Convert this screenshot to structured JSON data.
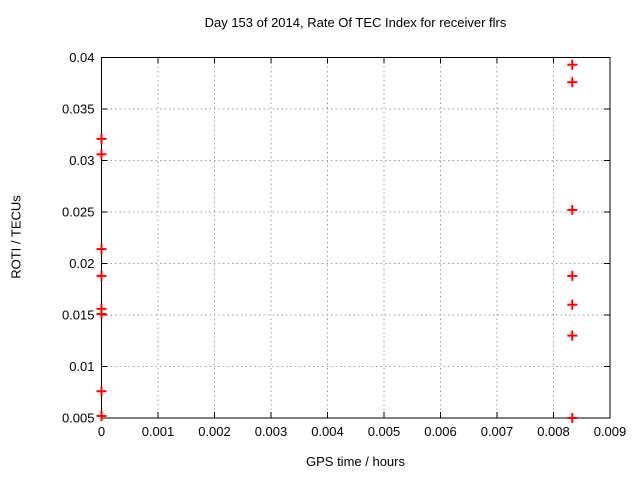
{
  "chart_data": {
    "type": "scatter",
    "title": "Day 153 of 2014, Rate Of TEC Index for receiver flrs",
    "xlabel": "GPS time / hours",
    "ylabel": "ROTI / TECUs",
    "xlim": [
      0,
      0.009
    ],
    "ylim": [
      0.005,
      0.04
    ],
    "grid": true,
    "legend_position": "none",
    "marker": "plus",
    "marker_color": "#ff0000",
    "xticks": {
      "values": [
        0,
        0.001,
        0.002,
        0.003,
        0.004,
        0.005,
        0.006,
        0.007,
        0.008,
        0.009
      ],
      "labels": [
        "0",
        "0.001",
        "0.002",
        "0.003",
        "0.004",
        "0.005",
        "0.006",
        "0.007",
        "0.008",
        "0.009"
      ]
    },
    "yticks": {
      "values": [
        0.005,
        0.01,
        0.015,
        0.02,
        0.025,
        0.03,
        0.035,
        0.04
      ],
      "labels": [
        "0.005",
        "0.01",
        "0.015",
        "0.02",
        "0.025",
        "0.03",
        "0.035",
        "0.04"
      ]
    },
    "series": [
      {
        "name": "ROTI",
        "color": "#ff0000",
        "points": [
          [
            0,
            0.0321
          ],
          [
            0,
            0.0306
          ],
          [
            0,
            0.0214
          ],
          [
            0,
            0.0188
          ],
          [
            0,
            0.0156
          ],
          [
            0,
            0.0151
          ],
          [
            0,
            0.0076
          ],
          [
            0,
            0.0052
          ],
          [
            0.008333,
            0.0393
          ],
          [
            0.008333,
            0.0376
          ],
          [
            0.008333,
            0.0252
          ],
          [
            0.008333,
            0.0188
          ],
          [
            0.008333,
            0.016
          ],
          [
            0.008333,
            0.013
          ],
          [
            0.008333,
            0.005
          ]
        ]
      }
    ]
  }
}
